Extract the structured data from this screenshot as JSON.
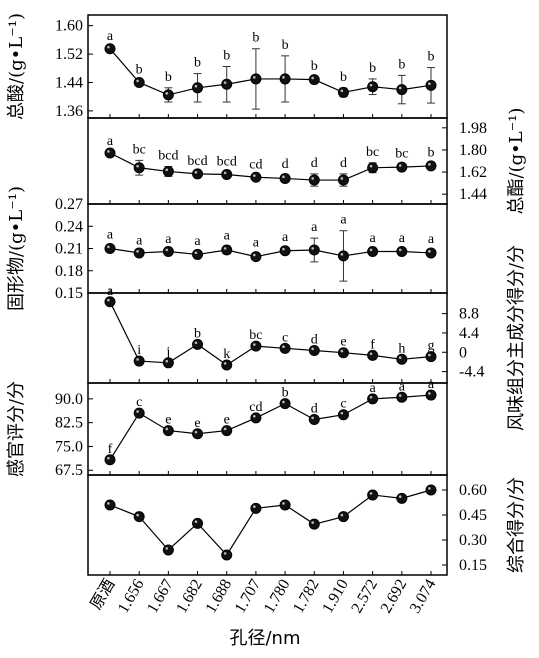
{
  "chart_data": {
    "type": "line",
    "xlabel": "孔径/nm",
    "categories": [
      "原酒",
      "1.656",
      "1.667",
      "1.682",
      "1.688",
      "1.707",
      "1.780",
      "1.782",
      "1.910",
      "2.572",
      "2.692",
      "3.074"
    ],
    "panels": [
      {
        "id": "total-acid",
        "ylabel": "总酸/(g•L⁻¹)",
        "side": "left",
        "ylim": [
          1.34,
          1.63
        ],
        "ticks": [
          1.36,
          1.44,
          1.52,
          1.6
        ],
        "tick_labels": [
          "1.36",
          "1.44",
          "1.52",
          "1.60"
        ],
        "values": [
          1.535,
          1.44,
          1.405,
          1.425,
          1.435,
          1.45,
          1.45,
          1.448,
          1.412,
          1.428,
          1.42,
          1.432
        ],
        "errors": [
          0.005,
          0.006,
          0.02,
          0.04,
          0.05,
          0.085,
          0.065,
          0.008,
          0.012,
          0.022,
          0.04,
          0.05
        ],
        "letters": [
          "a",
          "b",
          "b",
          "b",
          "b",
          "b",
          "b",
          "b",
          "b",
          "b",
          "b",
          "b"
        ]
      },
      {
        "id": "total-ester",
        "ylabel": "总酯/(g•L⁻¹)",
        "side": "right",
        "ylim": [
          1.36,
          2.06
        ],
        "ticks": [
          1.44,
          1.62,
          1.8,
          1.98
        ],
        "tick_labels": [
          "1.44",
          "1.62",
          "1.80",
          "1.98"
        ],
        "values": [
          1.775,
          1.655,
          1.625,
          1.605,
          1.6,
          1.578,
          1.568,
          1.555,
          1.555,
          1.655,
          1.66,
          1.67
        ],
        "errors": [
          0.008,
          0.06,
          0.04,
          0.015,
          0.015,
          0.015,
          0.03,
          0.05,
          0.05,
          0.04,
          0.02,
          0.02
        ],
        "letters": [
          "a",
          "bc",
          "bcd",
          "bcd",
          "bcd",
          "cd",
          "d",
          "d",
          "d",
          "bc",
          "bc",
          "b"
        ]
      },
      {
        "id": "solids",
        "ylabel": "固形物/(g•L⁻¹)",
        "side": "left",
        "ylim": [
          0.15,
          0.27
        ],
        "ticks": [
          0.15,
          0.18,
          0.21,
          0.24,
          0.27
        ],
        "tick_labels": [
          "0.15",
          "0.18",
          "0.21",
          "0.24",
          "0.27"
        ],
        "values": [
          0.21,
          0.204,
          0.206,
          0.202,
          0.208,
          0.199,
          0.207,
          0.208,
          0.2,
          0.206,
          0.206,
          0.204
        ],
        "errors": [
          0.004,
          0.002,
          0.002,
          0.003,
          0.005,
          0.004,
          0.004,
          0.016,
          0.034,
          0.003,
          0.003,
          0.004
        ],
        "letters": [
          "a",
          "a",
          "a",
          "a",
          "a",
          "a",
          "a",
          "a",
          "a",
          "a",
          "a",
          "a"
        ]
      },
      {
        "id": "flavor-pc",
        "ylabel": "风味组分主成分得分/分",
        "side": "right",
        "ylim": [
          -7.0,
          13.5
        ],
        "ticks": [
          -4.4,
          0,
          4.4,
          8.8
        ],
        "tick_labels": [
          "-4.4",
          "0",
          "4.4",
          "8.8"
        ],
        "values": [
          11.5,
          -2.0,
          -2.4,
          1.8,
          -2.9,
          1.4,
          0.9,
          0.4,
          -0.1,
          -0.7,
          -1.6,
          -1.0
        ],
        "errors": [],
        "letters": [
          "a",
          "i",
          "j",
          "b",
          "k",
          "bc",
          "c",
          "d",
          "e",
          "f",
          "h",
          "g"
        ]
      },
      {
        "id": "sensory",
        "ylabel": "感官评分/分",
        "side": "left",
        "ylim": [
          66.0,
          95.0
        ],
        "ticks": [
          67.5,
          75.0,
          82.5,
          90.0
        ],
        "tick_labels": [
          "67.5",
          "75.0",
          "82.5",
          "90.0"
        ],
        "values": [
          70.8,
          85.5,
          80.0,
          79.0,
          80.0,
          84.0,
          88.5,
          83.5,
          85.0,
          90.0,
          90.5,
          91.2
        ],
        "errors": [],
        "letters": [
          "f",
          "c",
          "e",
          "e",
          "e",
          "cd",
          "b",
          "d",
          "c",
          "a",
          "a",
          "a"
        ]
      },
      {
        "id": "composite",
        "ylabel": "综合得分/分",
        "side": "right",
        "ylim": [
          0.09,
          0.69
        ],
        "ticks": [
          0.15,
          0.3,
          0.45,
          0.6
        ],
        "tick_labels": [
          "0.15",
          "0.30",
          "0.45",
          "0.60"
        ],
        "values": [
          0.51,
          0.44,
          0.24,
          0.4,
          0.21,
          0.49,
          0.51,
          0.395,
          0.44,
          0.57,
          0.55,
          0.6
        ],
        "errors": [],
        "letters": []
      }
    ]
  }
}
